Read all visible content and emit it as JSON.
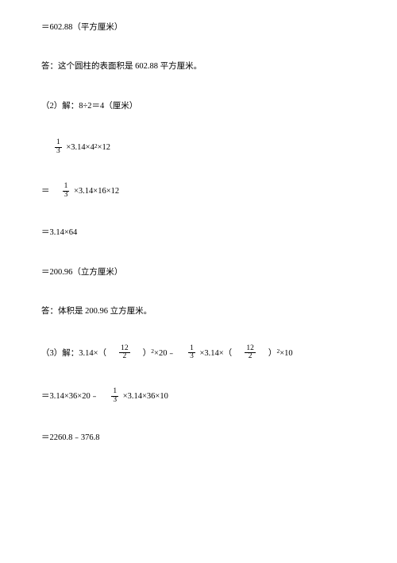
{
  "lines": {
    "l1": "＝602.88（平方厘米）",
    "l2": "答：这个圆柱的表面积是 602.88 平方厘米。",
    "l3": "（2）解：8÷2＝4（厘米）",
    "l4_a": " ×3.14×4",
    "l4_b": "×12",
    "l5_a": "＝　",
    "l5_b": " ×3.14×16×12",
    "l6": "＝3.14×64",
    "l7": "＝200.96（立方厘米）",
    "l8": "答：体积是 200.96 立方厘米。",
    "l9_a": "（3）解：3.14×（　",
    "l9_b": "　）",
    "l9_c": "×20﹣　",
    "l9_d": " ×3.14×（　",
    "l9_e": "　）",
    "l9_f": "×10",
    "l10_a": "＝3.14×36×20﹣　",
    "l10_b": " ×3.14×36×10",
    "l11": "＝2260.8﹣376.8",
    "sup2": "2"
  },
  "fracs": {
    "one_third_n": "1",
    "one_third_d": "3",
    "twelve_half_n": "12",
    "twelve_half_d": "2"
  }
}
